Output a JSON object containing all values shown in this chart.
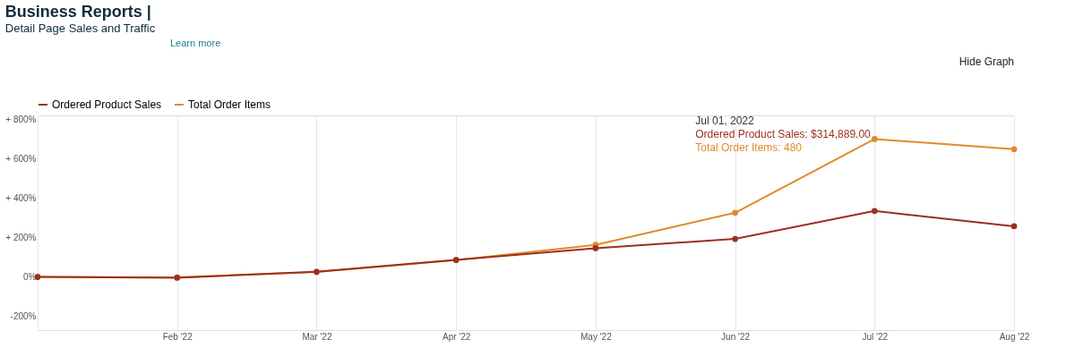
{
  "chart_data": {
    "type": "line",
    "title": "Business Reports |",
    "subtitle": "Detail Page Sales and Traffic",
    "categories": [
      null,
      "Feb '22",
      "Mar '22",
      "Apr '22",
      "May '22",
      "Jun '22",
      "Jul '22",
      "Aug '22"
    ],
    "series": [
      {
        "name": "Ordered Product Sales",
        "color": "#9c2f1f",
        "values": [
          0,
          -4,
          26,
          86,
          146,
          193,
          335,
          257
        ]
      },
      {
        "name": "Total Order Items",
        "color": "#e08a2c",
        "values": [
          0,
          -2,
          25,
          85,
          163,
          326,
          700,
          648
        ]
      }
    ],
    "ylim": [
      -270,
      820
    ],
    "yticks": [
      {
        "value": -200,
        "label": "-200%"
      },
      {
        "value": 0,
        "label": "0%"
      },
      {
        "value": 200,
        "label": "+ 200%"
      },
      {
        "value": 400,
        "label": "+ 400%"
      },
      {
        "value": 600,
        "label": "+ 600%"
      },
      {
        "value": 800,
        "label": "+ 800%"
      }
    ],
    "grid": "x",
    "legend": "top left",
    "marker": "circle",
    "line_style": "solid",
    "annotations": [
      "Learn more",
      "Hide Graph",
      "Jul 01, 2022",
      "Ordered Product Sales: $314,889.00",
      "Total Order Items: 480"
    ]
  }
}
